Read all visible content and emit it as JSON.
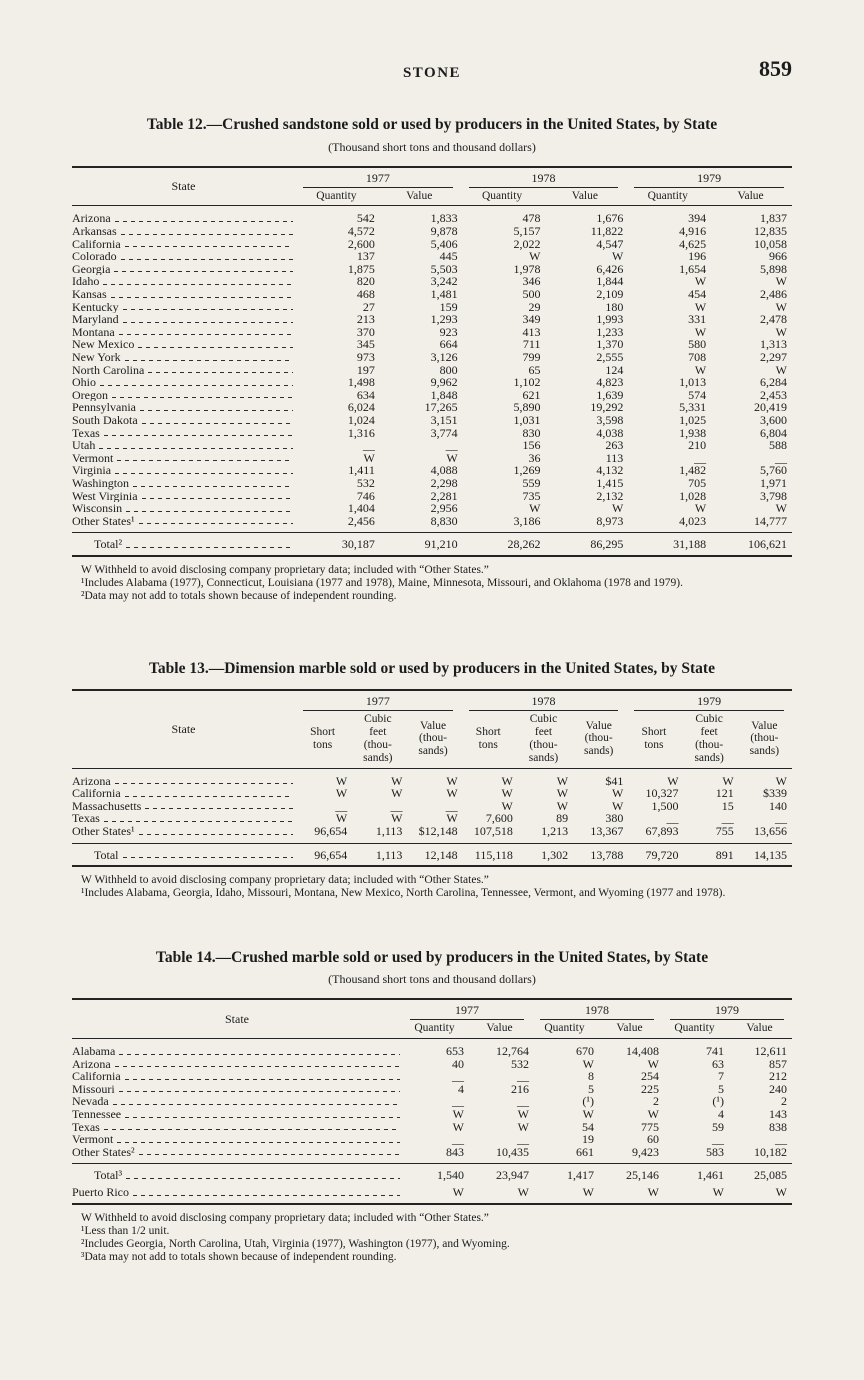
{
  "page": {
    "running_title": "STONE",
    "page_number": "859"
  },
  "tables": [
    {
      "id": "table12",
      "title": "Table 12.—Crushed sandstone sold or used by producers in the United States, by State",
      "subtitle": "(Thousand short tons and thousand dollars)",
      "state_header": "State",
      "years": [
        "1977",
        "1978",
        "1979"
      ],
      "sub_headers": [
        "Quantity",
        "Value"
      ],
      "rows": [
        {
          "state": "Arizona",
          "cells": [
            "542",
            "1,833",
            "478",
            "1,676",
            "394",
            "1,837"
          ]
        },
        {
          "state": "Arkansas",
          "cells": [
            "4,572",
            "9,878",
            "5,157",
            "11,822",
            "4,916",
            "12,835"
          ]
        },
        {
          "state": "California",
          "cells": [
            "2,600",
            "5,406",
            "2,022",
            "4,547",
            "4,625",
            "10,058"
          ]
        },
        {
          "state": "Colorado",
          "cells": [
            "137",
            "445",
            "W",
            "W",
            "196",
            "966"
          ]
        },
        {
          "state": "Georgia",
          "cells": [
            "1,875",
            "5,503",
            "1,978",
            "6,426",
            "1,654",
            "5,898"
          ]
        },
        {
          "state": "Idaho",
          "cells": [
            "820",
            "3,242",
            "346",
            "1,844",
            "W",
            "W"
          ]
        },
        {
          "state": "Kansas",
          "cells": [
            "468",
            "1,481",
            "500",
            "2,109",
            "454",
            "2,486"
          ]
        },
        {
          "state": "Kentucky",
          "cells": [
            "27",
            "159",
            "29",
            "180",
            "W",
            "W"
          ]
        },
        {
          "state": "Maryland",
          "cells": [
            "213",
            "1,293",
            "349",
            "1,993",
            "331",
            "2,478"
          ]
        },
        {
          "state": "Montana",
          "cells": [
            "370",
            "923",
            "413",
            "1,233",
            "W",
            "W"
          ]
        },
        {
          "state": "New Mexico",
          "cells": [
            "345",
            "664",
            "711",
            "1,370",
            "580",
            "1,313"
          ]
        },
        {
          "state": "New York",
          "cells": [
            "973",
            "3,126",
            "799",
            "2,555",
            "708",
            "2,297"
          ]
        },
        {
          "state": "North Carolina",
          "cells": [
            "197",
            "800",
            "65",
            "124",
            "W",
            "W"
          ]
        },
        {
          "state": "Ohio",
          "cells": [
            "1,498",
            "9,962",
            "1,102",
            "4,823",
            "1,013",
            "6,284"
          ]
        },
        {
          "state": "Oregon",
          "cells": [
            "634",
            "1,848",
            "621",
            "1,639",
            "574",
            "2,453"
          ]
        },
        {
          "state": "Pennsylvania",
          "cells": [
            "6,024",
            "17,265",
            "5,890",
            "19,292",
            "5,331",
            "20,419"
          ]
        },
        {
          "state": "South Dakota",
          "cells": [
            "1,024",
            "3,151",
            "1,031",
            "3,598",
            "1,025",
            "3,600"
          ]
        },
        {
          "state": "Texas",
          "cells": [
            "1,316",
            "3,774",
            "830",
            "4,038",
            "1,938",
            "6,804"
          ]
        },
        {
          "state": "Utah",
          "cells": [
            "__",
            "__",
            "156",
            "263",
            "210",
            "588"
          ]
        },
        {
          "state": "Vermont",
          "cells": [
            "W",
            "W",
            "36",
            "113",
            "__",
            "__"
          ]
        },
        {
          "state": "Virginia",
          "cells": [
            "1,411",
            "4,088",
            "1,269",
            "4,132",
            "1,482",
            "5,760"
          ]
        },
        {
          "state": "Washington",
          "cells": [
            "532",
            "2,298",
            "559",
            "1,415",
            "705",
            "1,971"
          ]
        },
        {
          "state": "West Virginia",
          "cells": [
            "746",
            "2,281",
            "735",
            "2,132",
            "1,028",
            "3,798"
          ]
        },
        {
          "state": "Wisconsin",
          "cells": [
            "1,404",
            "2,956",
            "W",
            "W",
            "W",
            "W"
          ]
        },
        {
          "state": "Other States¹",
          "cells": [
            "2,456",
            "8,830",
            "3,186",
            "8,973",
            "4,023",
            "14,777"
          ]
        }
      ],
      "footer_rows": [
        {
          "state": "Total²",
          "indent": true,
          "cells": [
            "30,187",
            "91,210",
            "28,262",
            "86,295",
            "31,188",
            "106,621"
          ]
        }
      ],
      "footnotes": [
        "W Withheld to avoid disclosing company proprietary data; included with “Other States.”",
        "¹Includes Alabama (1977), Connecticut, Louisiana (1977 and 1978), Maine, Minnesota, Missouri, and Oklahoma (1978 and 1979).",
        "²Data may not add to totals shown because of independent rounding."
      ]
    },
    {
      "id": "table13",
      "title": "Table 13.—Dimension marble sold or used by producers in the United States, by State",
      "subtitle": "",
      "state_header": "State",
      "years": [
        "1977",
        "1978",
        "1979"
      ],
      "sub_headers": [
        "Short\ntons",
        "Cubic\nfeet\n(thou-\nsands)",
        "Value\n(thou-\nsands)"
      ],
      "rows": [
        {
          "state": "Arizona",
          "cells": [
            "W",
            "W",
            "W",
            "W",
            "W",
            "$41",
            "W",
            "W",
            "W"
          ]
        },
        {
          "state": "California",
          "cells": [
            "W",
            "W",
            "W",
            "W",
            "W",
            "W",
            "10,327",
            "121",
            "$339"
          ]
        },
        {
          "state": "Massachusetts",
          "cells": [
            "__",
            "__",
            "__",
            "W",
            "W",
            "W",
            "1,500",
            "15",
            "140"
          ]
        },
        {
          "state": "Texas",
          "cells": [
            "W",
            "W",
            "W",
            "7,600",
            "89",
            "380",
            "__",
            "__",
            "__"
          ]
        },
        {
          "state": "Other States¹",
          "cells": [
            "96,654",
            "1,113",
            "$12,148",
            "107,518",
            "1,213",
            "13,367",
            "67,893",
            "755",
            "13,656"
          ]
        }
      ],
      "footer_rows": [
        {
          "state": "Total",
          "indent": true,
          "cells": [
            "96,654",
            "1,113",
            "12,148",
            "115,118",
            "1,302",
            "13,788",
            "79,720",
            "891",
            "14,135"
          ]
        }
      ],
      "footnotes": [
        "W Withheld to avoid disclosing company proprietary data; included with “Other States.”",
        "¹Includes Alabama, Georgia, Idaho, Missouri, Montana, New Mexico, North Carolina, Tennessee, Vermont, and Wyoming (1977 and 1978)."
      ]
    },
    {
      "id": "table14",
      "title": "Table 14.—Crushed marble sold or used by producers in the United States, by State",
      "subtitle": "(Thousand short tons and thousand dollars)",
      "state_header": "State",
      "years": [
        "1977",
        "1978",
        "1979"
      ],
      "sub_headers": [
        "Quantity",
        "Value"
      ],
      "rows": [
        {
          "state": "Alabama",
          "cells": [
            "653",
            "12,764",
            "670",
            "14,408",
            "741",
            "12,611"
          ]
        },
        {
          "state": "Arizona",
          "cells": [
            "40",
            "532",
            "W",
            "W",
            "63",
            "857"
          ]
        },
        {
          "state": "California",
          "cells": [
            "__",
            "__",
            "8",
            "254",
            "7",
            "212"
          ]
        },
        {
          "state": "Missouri",
          "cells": [
            "4",
            "216",
            "5",
            "225",
            "5",
            "240"
          ]
        },
        {
          "state": "Nevada",
          "cells": [
            "__",
            "__",
            "(¹)",
            "2",
            "(¹)",
            "2"
          ]
        },
        {
          "state": "Tennessee",
          "cells": [
            "W",
            "W",
            "W",
            "W",
            "4",
            "143"
          ]
        },
        {
          "state": "Texas",
          "cells": [
            "W",
            "W",
            "54",
            "775",
            "59",
            "838"
          ]
        },
        {
          "state": "Vermont",
          "cells": [
            "__",
            "__",
            "19",
            "60",
            "__",
            "__"
          ]
        },
        {
          "state": "Other States²",
          "cells": [
            "843",
            "10,435",
            "661",
            "9,423",
            "583",
            "10,182"
          ]
        }
      ],
      "footer_rows": [
        {
          "state": "Total³",
          "indent": true,
          "cells": [
            "1,540",
            "23,947",
            "1,417",
            "25,146",
            "1,461",
            "25,085"
          ]
        },
        {
          "state": "Puerto Rico",
          "indent": false,
          "cells": [
            "W",
            "W",
            "W",
            "W",
            "W",
            "W"
          ]
        }
      ],
      "footnotes": [
        "W Withheld to avoid disclosing company proprietary data; included with “Other States.”",
        "¹Less than 1/2 unit.",
        "²Includes Georgia, North Carolina, Utah, Virginia (1977), Washington (1977), and Wyoming.",
        "³Data may not add to totals shown because of independent rounding."
      ]
    }
  ]
}
